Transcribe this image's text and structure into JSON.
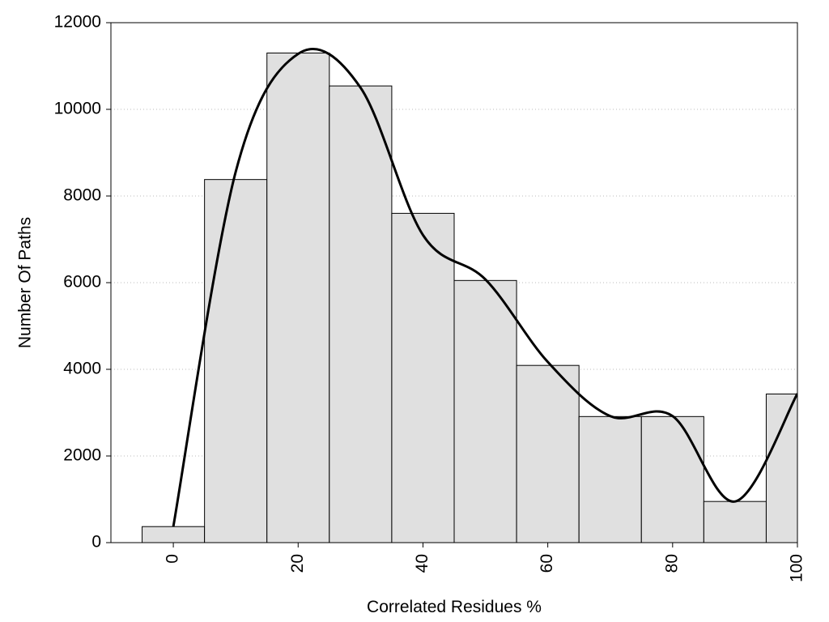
{
  "chart_data": {
    "type": "histogram",
    "bins": [
      -5,
      5,
      15,
      25,
      35,
      45,
      55,
      65,
      75,
      85,
      95,
      105
    ],
    "values": [
      370,
      8380,
      11300,
      10540,
      7600,
      6050,
      4090,
      2910,
      2910,
      950,
      3430
    ],
    "color": "#e0e0e0",
    "curve": {
      "x": [
        0,
        10,
        20,
        30,
        40,
        50,
        60,
        70,
        80,
        90,
        100
      ],
      "values": [
        370,
        8560,
        11280,
        10500,
        7100,
        6075,
        4170,
        2920,
        2920,
        950,
        3440
      ],
      "color": "#000000"
    },
    "xlim": [
      -10,
      100
    ],
    "ylim": [
      0,
      12000
    ],
    "xticks": [
      0,
      20,
      40,
      60,
      80,
      100
    ],
    "yticks": [
      0,
      2000,
      4000,
      6000,
      8000,
      10000,
      12000
    ],
    "grid": true,
    "xlabel": "Correlated Residues %",
    "ylabel": "Number Of Paths"
  }
}
